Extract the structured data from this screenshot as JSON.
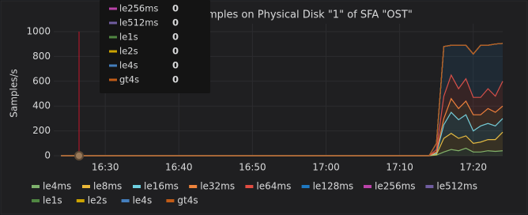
{
  "chart_data": {
    "type": "stacked-area",
    "title": "mples on Physical Disk \"1\" of SFA \"OST\"",
    "y_label": "Samples/s",
    "x": [
      "16:24",
      "17:14",
      "17:15",
      "17:16",
      "17:17",
      "17:18",
      "17:19",
      "17:20",
      "17:21",
      "17:22",
      "17:23",
      "17:24"
    ],
    "xlim": [
      "16:23",
      "17:24"
    ],
    "xticks": [
      "16:30",
      "16:40",
      "16:50",
      "17:00",
      "17:10",
      "17:20"
    ],
    "ylim": [
      0,
      1000
    ],
    "yticks": [
      0,
      200,
      400,
      600,
      800,
      1000
    ],
    "grid": true,
    "series": [
      {
        "name": "le4ms",
        "color": "#7eb26d",
        "values": [
          0,
          0,
          5,
          30,
          50,
          40,
          60,
          30,
          30,
          40,
          35,
          40
        ]
      },
      {
        "name": "le8ms",
        "color": "#eab839",
        "values": [
          0,
          0,
          5,
          110,
          130,
          100,
          100,
          70,
          80,
          90,
          95,
          150
        ]
      },
      {
        "name": "le16ms",
        "color": "#6ed0e0",
        "values": [
          0,
          0,
          10,
          110,
          170,
          150,
          170,
          100,
          130,
          130,
          110,
          110
        ]
      },
      {
        "name": "le32ms",
        "color": "#ef843c",
        "values": [
          0,
          0,
          10,
          50,
          110,
          90,
          110,
          130,
          90,
          120,
          110,
          100
        ]
      },
      {
        "name": "le64ms",
        "color": "#e24d42",
        "values": [
          0,
          0,
          20,
          180,
          190,
          160,
          180,
          140,
          140,
          160,
          130,
          200
        ]
      },
      {
        "name": "le128ms",
        "color": "#1f78c1",
        "values": [
          0,
          0,
          50,
          400,
          240,
          350,
          270,
          350,
          420,
          350,
          420,
          305
        ]
      },
      {
        "name": "le256ms",
        "color": "#ba43a9",
        "values": [
          0,
          0,
          0,
          0,
          0,
          0,
          0,
          0,
          0,
          0,
          0,
          0
        ]
      },
      {
        "name": "le512ms",
        "color": "#705da0",
        "values": [
          0,
          0,
          0,
          0,
          0,
          0,
          0,
          0,
          0,
          0,
          0,
          0
        ]
      },
      {
        "name": "le1s",
        "color": "#508642",
        "values": [
          0,
          0,
          0,
          0,
          0,
          0,
          0,
          0,
          0,
          0,
          0,
          0
        ]
      },
      {
        "name": "le2s",
        "color": "#cca300",
        "values": [
          0,
          0,
          0,
          0,
          0,
          0,
          0,
          0,
          0,
          0,
          0,
          0
        ]
      },
      {
        "name": "le4s",
        "color": "#447ebc",
        "values": [
          0,
          0,
          0,
          0,
          0,
          0,
          0,
          0,
          0,
          0,
          0,
          0
        ]
      },
      {
        "name": "gt4s",
        "color": "#c15c17",
        "values": [
          0,
          0,
          0,
          0,
          0,
          0,
          0,
          0,
          0,
          0,
          0,
          0
        ]
      }
    ],
    "tooltip": {
      "rows": [
        {
          "name": "le256ms",
          "color": "#ba43a9",
          "value": 0
        },
        {
          "name": "le512ms",
          "color": "#705da0",
          "value": 0
        },
        {
          "name": "le1s",
          "color": "#508642",
          "value": 0
        },
        {
          "name": "le2s",
          "color": "#cca300",
          "value": 0
        },
        {
          "name": "le4s",
          "color": "#447ebc",
          "value": 0
        },
        {
          "name": "gt4s",
          "color": "#c15c17",
          "value": 0
        }
      ]
    }
  }
}
